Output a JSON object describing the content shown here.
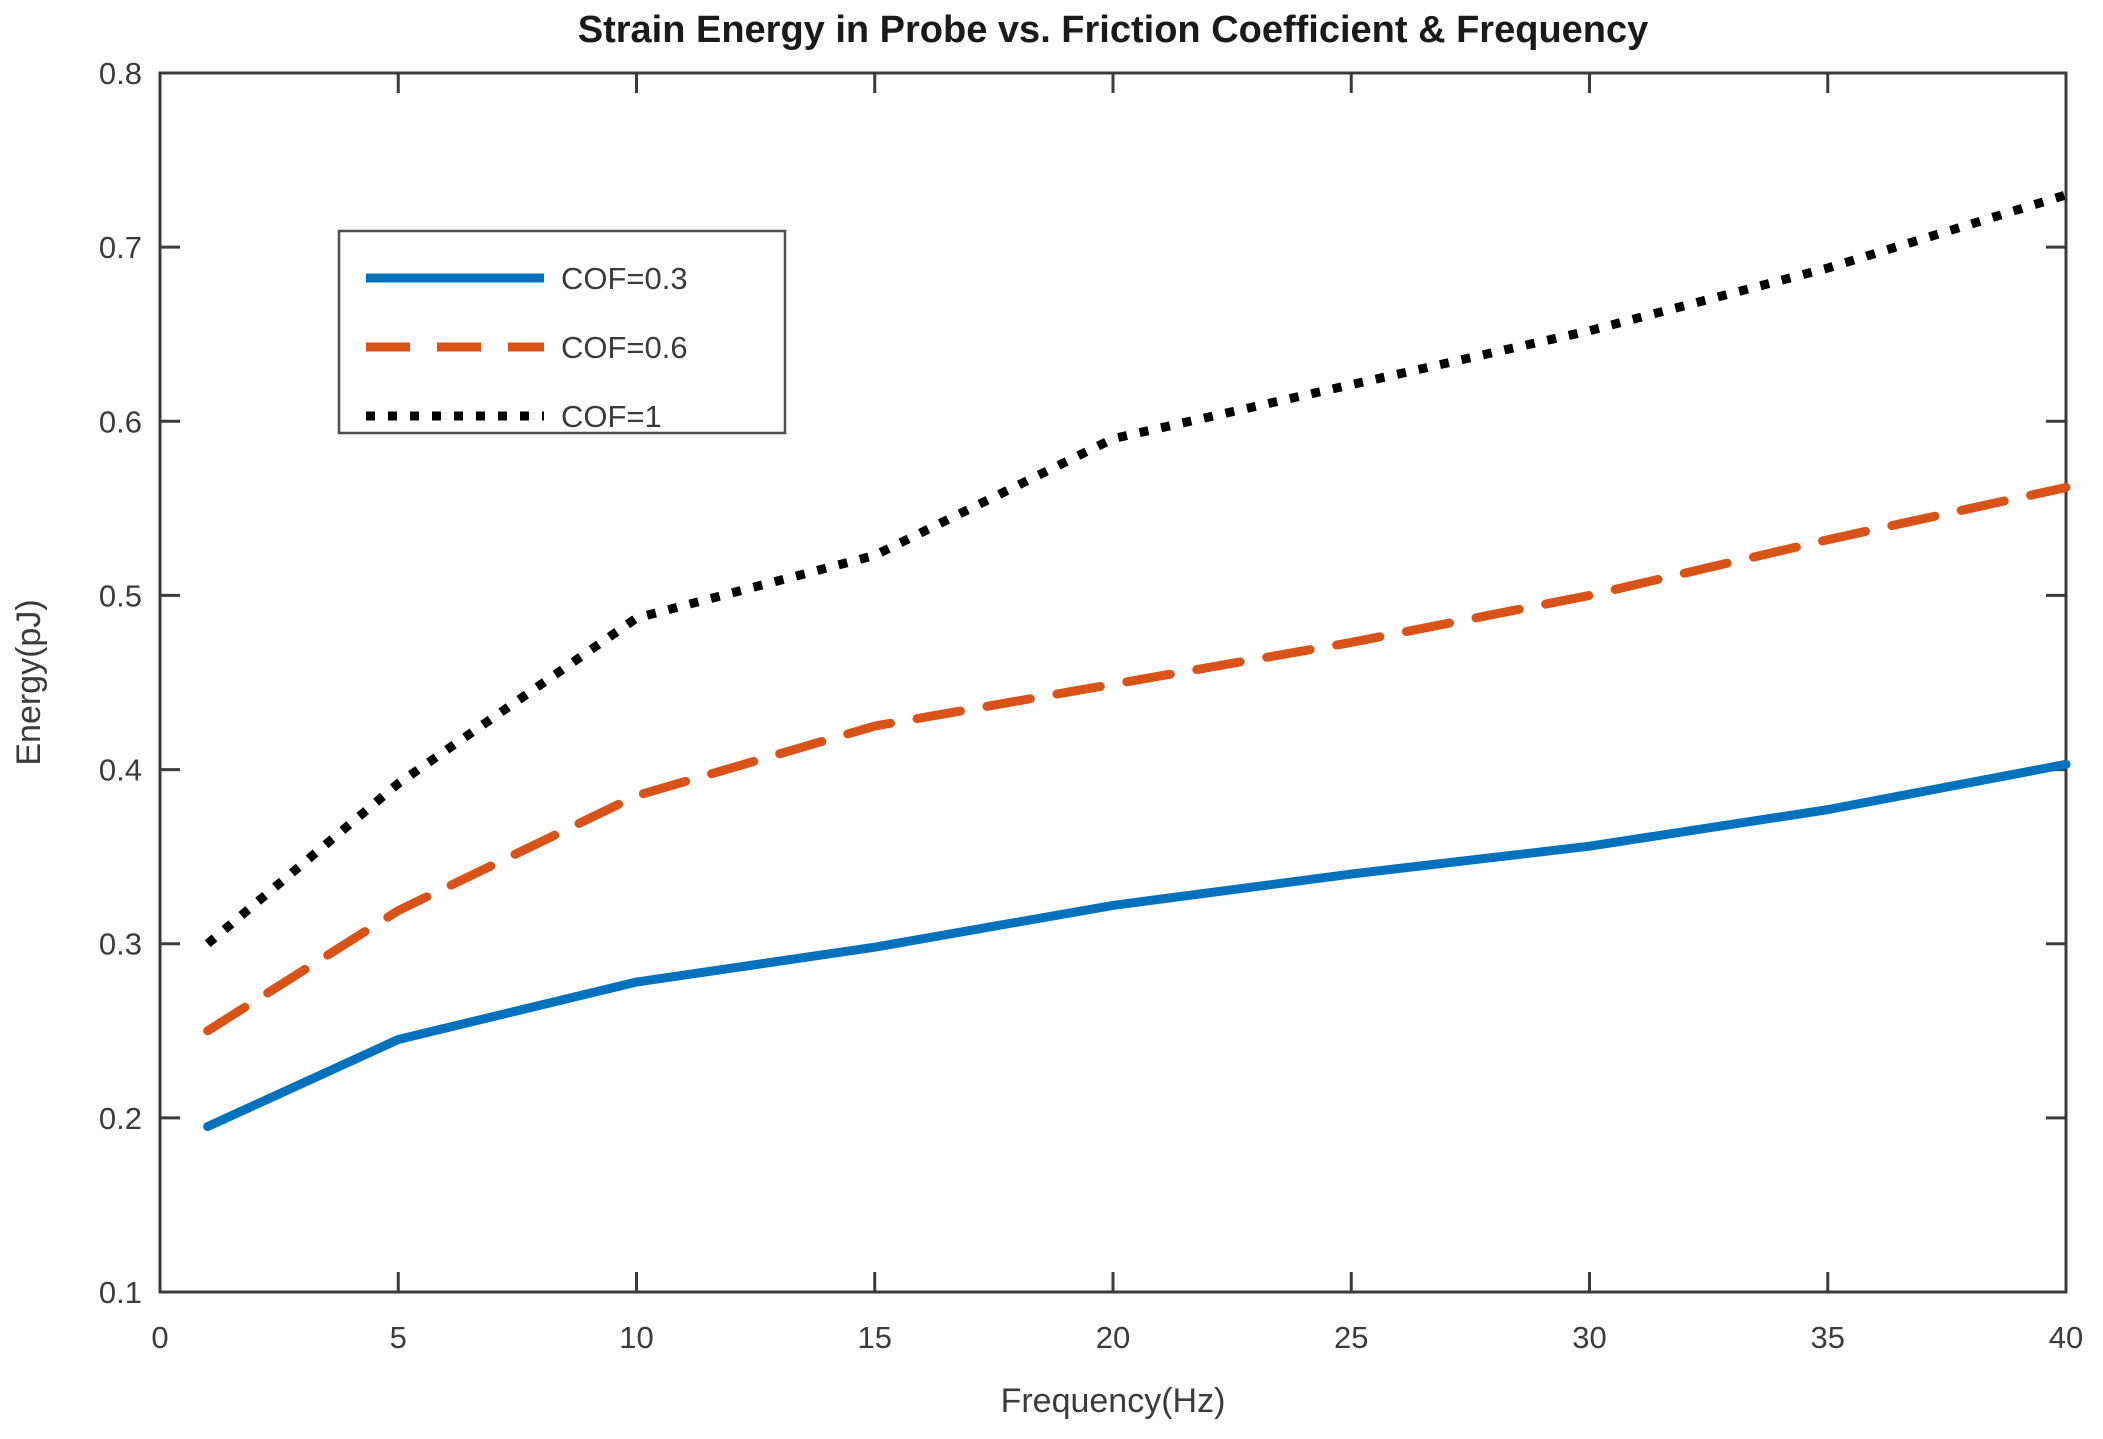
{
  "figure": {
    "title": "Strain Energy in Probe vs. Friction Coefficient & Frequency",
    "xlabel": "Frequency(Hz)",
    "ylabel": "Energy(pJ)"
  },
  "colors": {
    "axis": "#3b3b3b",
    "title": "#1a1a1a",
    "series_blue": "#0072BD",
    "series_orange": "#D95319",
    "series_black": "#000000",
    "legend_border": "#4d4d4d",
    "background": "#ffffff"
  },
  "chart_data": {
    "type": "line",
    "title": "Strain Energy in Probe vs. Friction Coefficient & Frequency",
    "xlabel": "Frequency(Hz)",
    "ylabel": "Energy(pJ)",
    "xlim": [
      0,
      40
    ],
    "ylim": [
      0.1,
      0.8
    ],
    "xticks": [
      0,
      5,
      10,
      15,
      20,
      25,
      30,
      35,
      40
    ],
    "xtick_labels": [
      "0",
      "5",
      "10",
      "15",
      "20",
      "25",
      "30",
      "35",
      "40"
    ],
    "yticks": [
      0.1,
      0.2,
      0.3,
      0.4,
      0.5,
      0.6,
      0.7,
      0.8
    ],
    "ytick_labels": [
      "0.1",
      "0.2",
      "0.3",
      "0.4",
      "0.5",
      "0.6",
      "0.7",
      "0.8"
    ],
    "grid": false,
    "box": true,
    "legend_position": "upper-left",
    "x": [
      1,
      5,
      10,
      15,
      20,
      25,
      30,
      35,
      40
    ],
    "series": [
      {
        "name": "COF=0.3",
        "style": "solid",
        "color": "#0072BD",
        "values": [
          0.195,
          0.245,
          0.278,
          0.298,
          0.322,
          0.34,
          0.356,
          0.377,
          0.403
        ]
      },
      {
        "name": "COF=0.6",
        "style": "dashed",
        "color": "#D95319",
        "values": [
          0.25,
          0.319,
          0.385,
          0.425,
          0.449,
          0.473,
          0.5,
          0.532,
          0.562
        ]
      },
      {
        "name": "COF=1",
        "style": "dotted",
        "color": "#000000",
        "values": [
          0.3,
          0.392,
          0.487,
          0.523,
          0.59,
          0.621,
          0.652,
          0.688,
          0.73
        ]
      }
    ]
  },
  "legend": {
    "entries": [
      "COF=0.3",
      "COF=0.6",
      "COF=1"
    ]
  }
}
